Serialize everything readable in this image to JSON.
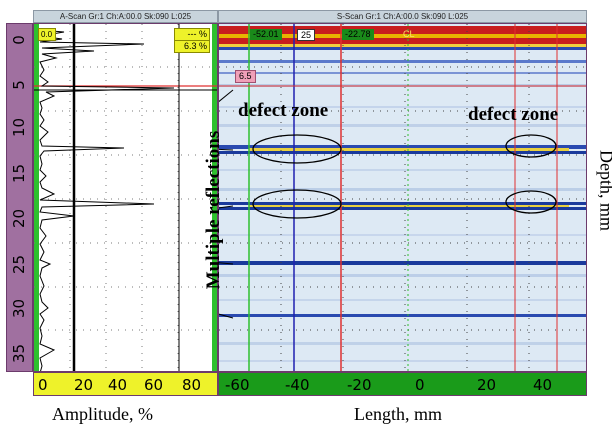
{
  "ascan": {
    "title": "A-Scan Gr:1 Ch:A:00.0 Sk:090 L:025",
    "top_left_value": "0.0",
    "gate_label": "--- %",
    "gate_value": "6.3 %",
    "depth_ticks": [
      "0",
      "5",
      "10",
      "15",
      "20",
      "25",
      "30",
      "35"
    ],
    "amplitude_ticks": [
      "0",
      "20",
      "40",
      "60",
      "80"
    ],
    "xlabel": "Amplitude, %"
  },
  "sscan": {
    "title": "S-Scan Gr:1 Ch:A:00.0 Sk:090 L:025",
    "cursor_left_value": "-52.01",
    "cursor_mid_value": "25",
    "cursor_right_value": "-22.78",
    "cl_label": "CL",
    "depth_marker": "6.5",
    "length_ticks": [
      "-60",
      "-40",
      "-20",
      "0",
      "20",
      "40"
    ],
    "xlabel": "Length, mm",
    "ylabel": "Depth, mm"
  },
  "annotations": {
    "defect_zone_left": "defect zone",
    "defect_zone_right": "defect zone",
    "multiple_reflections": "Multiple reflections"
  },
  "colors": {
    "panel_border": "#6c3b6c",
    "depth_scale_bg": "#a070a0",
    "ascan_bg": "#ffffff",
    "amplitude_bar": "#1a9b1a",
    "sscan_bg": "#dde9f4",
    "reflection_band": "#1a3a9c",
    "surface_band": "#c81e1e",
    "cursor_green": "#2ec02e",
    "cursor_blue": "#2020b0",
    "cursor_red": "#e03030"
  }
}
